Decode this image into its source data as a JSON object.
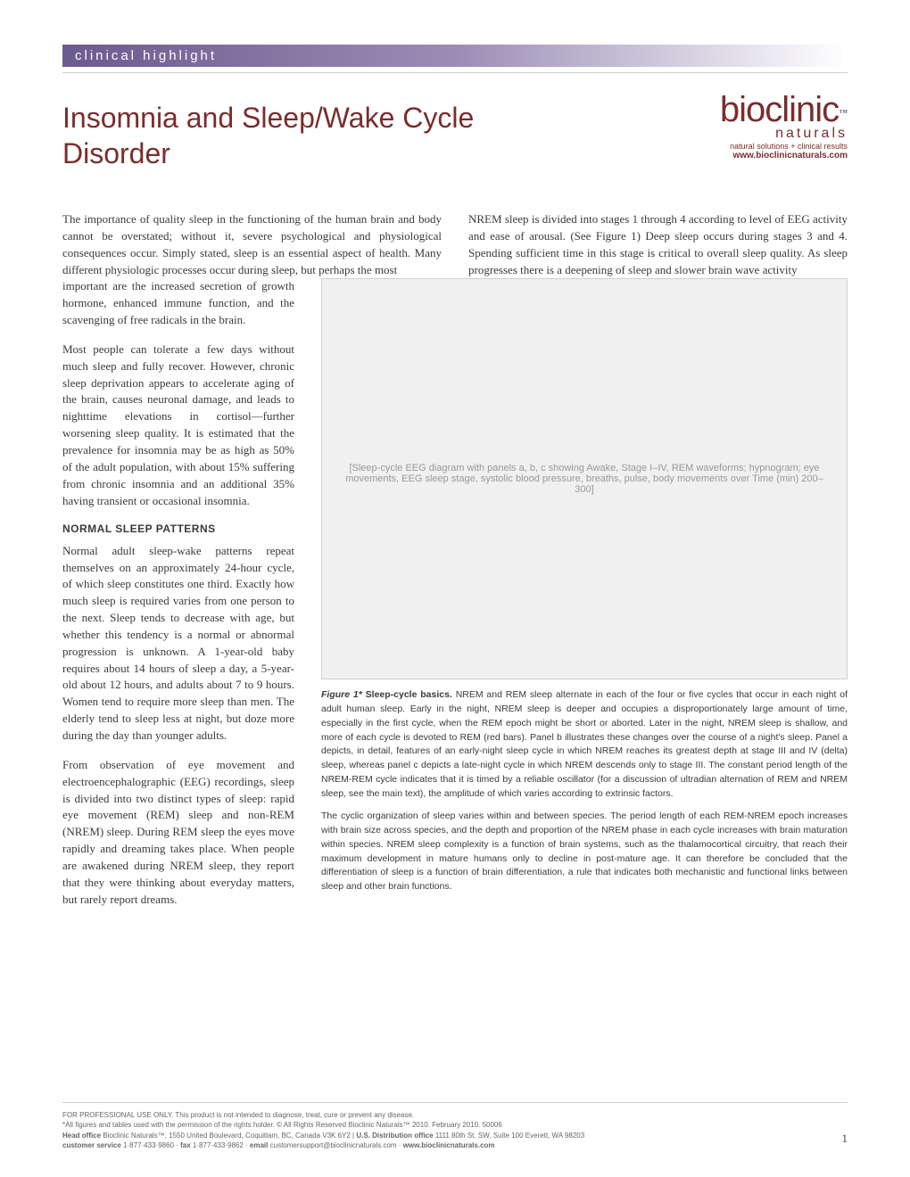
{
  "header": {
    "kicker": "clinical highlight"
  },
  "logo": {
    "main": "bioclinic",
    "sub": "naturals",
    "tagline": "natural solutions + clinical results",
    "url": "www.bioclinicnaturals.com",
    "tm": "™"
  },
  "title": "Insomnia and Sleep/Wake Cycle Disorder",
  "intro": {
    "left": "The importance of quality sleep in the functioning of the human brain and body cannot be overstated; without it, severe psychological and physiological consequences occur. Simply stated, sleep is an essential aspect of health. Many different physiologic processes occur during sleep, but perhaps the most",
    "right": "NREM sleep is divided into stages 1 through 4 according to level of EEG activity and ease of arousal. (See Figure 1) Deep sleep occurs during stages 3 and 4. Spending sufficient time in this stage is critical to overall sleep quality. As sleep progresses there is a deepening of sleep and slower brain wave activity"
  },
  "body": {
    "p1": "important are the increased secretion of growth hormone, enhanced immune function, and the scavenging of free radicals in the brain.",
    "p2": "Most people can tolerate a few days without much sleep and fully recover. However, chronic sleep deprivation appears to accelerate aging of the brain, causes neuronal damage, and leads to nighttime elevations in cortisol—further worsening sleep quality. It is estimated that the prevalence for insomnia may be as high as 50% of the adult population, with about 15% suffering from chronic insomnia and an additional 35% having transient or occasional insomnia.",
    "h1": "NORMAL SLEEP PATTERNS",
    "p3": "Normal adult sleep-wake patterns repeat themselves on an approximately 24-hour cycle, of which sleep constitutes one third. Exactly how much sleep is required varies from one person to the next. Sleep tends to decrease with age, but whether this tendency is a normal or abnormal progression is unknown. A 1-year-old baby requires about 14 hours of sleep a day, a 5-year-old about 12 hours, and adults about 7 to 9 hours. Women tend to require more sleep than men. The elderly tend to sleep less at night, but doze more during the day than younger adults.",
    "p4": "From observation of eye movement and electroencephalographic (EEG) recordings, sleep is divided into two distinct types of sleep: rapid eye movement (REM) sleep and non-REM (NREM) sleep. During REM sleep the eyes move rapidly and dreaming takes place. When people are awakened during NREM sleep, they report that they were thinking about everyday matters, but rarely report dreams."
  },
  "figure": {
    "placeholder": "[Sleep-cycle EEG diagram with panels a, b, c showing Awake, Stage I–IV, REM waveforms; hypnogram; eye movements, EEG sleep stage, systolic blood pressure, breaths, pulse, body movements over Time (min) 200–300]",
    "caption_label": "Figure 1*",
    "caption_bold": "Sleep-cycle basics.",
    "caption1": " NREM and REM sleep alternate in each of the four or five cycles that occur in each night of adult human sleep. Early in the night, NREM sleep is deeper and occupies a disproportionately large amount of time, especially in the first cycle, when the REM epoch might be short or aborted. Later in the night, NREM sleep is shallow, and more of each cycle is devoted to REM (red bars). Panel b illustrates these changes over the course of a night's sleep. Panel a depicts, in detail, features of an early-night sleep cycle in which NREM reaches its greatest depth at stage III and IV (delta) sleep, whereas panel c depicts a late-night cycle in which NREM descends only to stage III. The constant period length of the NREM-REM cycle indicates that it is timed by a reliable oscillator (for a discussion of ultradian alternation of REM and NREM sleep, see the main text), the amplitude of which varies according to extrinsic factors.",
    "caption2": "The cyclic organization of sleep varies within and between species. The period length of each REM-NREM epoch increases with brain size across species, and the depth and proportion of the NREM phase in each cycle increases with brain maturation within species. NREM sleep complexity is a function of brain systems, such as the thalamocortical circuitry, that reach their maximum development in mature humans only to decline in post-mature age. It can therefore be concluded that the differentiation of sleep is a function of brain differentiation, a rule that indicates both mechanistic and functional links between sleep and other brain functions."
  },
  "footer": {
    "l1": "FOR PROFESSIONAL USE ONLY. This product is not intended to diagnose, treat, cure or prevent any disease.",
    "l2": "*All figures and tables used with the permission of the rights holder. © All Rights Reserved Bioclinic Naturals™ 2010. February 2010. 50006",
    "l3_a": "Head office",
    "l3_b": " Bioclinic Naturals™, 1550 United Boulevard, Coquitlam, BC, Canada V3K 6Y2 | ",
    "l3_c": "U.S. Distribution office",
    "l3_d": " 1111 80th St. SW, Suite 100 Everett, WA 98203",
    "l4_a": "customer service",
    "l4_b": " 1·877·433·9860 · ",
    "l4_c": "fax",
    "l4_d": " 1·877·433·9862 · ",
    "l4_e": "email",
    "l4_f": " customersupport@bioclinicnaturals.com · ",
    "l4_g": "www.bioclinicnaturals.com",
    "page": "1"
  },
  "colors": {
    "brand": "#7a2d2d",
    "header_grad_start": "#6b5a8e",
    "text": "#3a3a3a",
    "footer_text": "#666666"
  }
}
